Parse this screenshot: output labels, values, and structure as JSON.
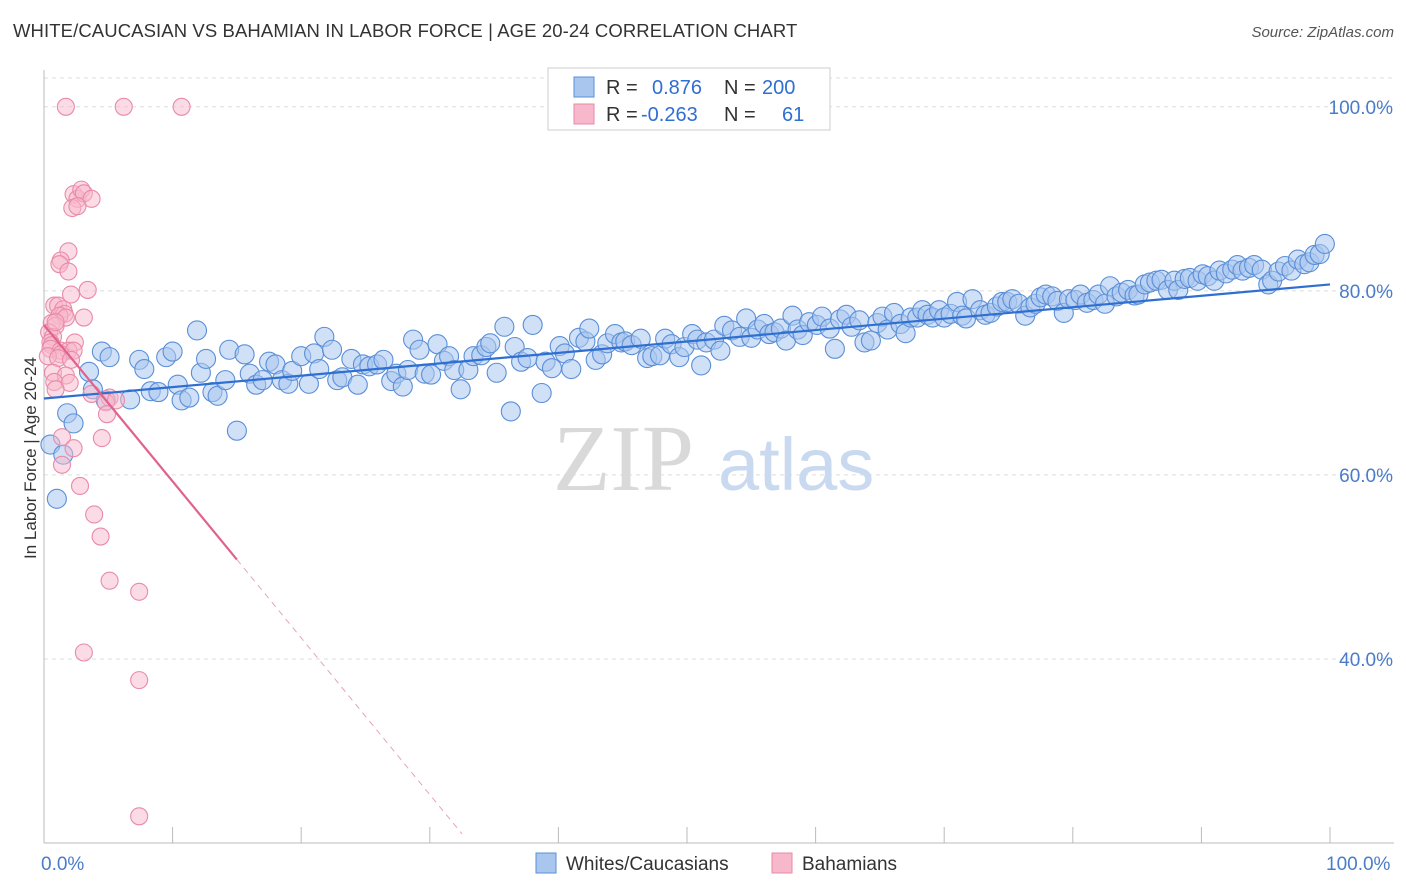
{
  "title": "WHITE/CAUCASIAN VS BAHAMIAN IN LABOR FORCE | AGE 20-24 CORRELATION CHART",
  "source": "Source: ZipAtlas.com",
  "watermark": {
    "zip": "ZIP",
    "atlas": "atlas"
  },
  "colors": {
    "white_fill": "#a9c6ee",
    "white_stroke": "#5a8fd8",
    "white_line": "#2f6fd1",
    "bah_fill": "#f7b8cc",
    "bah_stroke": "#e98aa9",
    "bah_line": "#e0628f",
    "axis_text": "#4a7cc9",
    "grid": "#dddddd"
  },
  "legend": {
    "row1": {
      "r_label": "R =",
      "r_value": "0.876",
      "n_label": "N =",
      "n_value": "200"
    },
    "row2": {
      "r_label": "R =",
      "r_value": "-0.263",
      "n_label": "N =",
      "n_value": "61"
    }
  },
  "bottom_legend": {
    "white": "Whites/Caucasians",
    "bahamian": "Bahamians"
  },
  "chart_data": {
    "type": "scatter",
    "title": "WHITE/CAUCASIAN VS BAHAMIAN IN LABOR FORCE | AGE 20-24 CORRELATION CHART",
    "xlabel": "",
    "ylabel": "In Labor Force | Age 20-24",
    "xlim": [
      0,
      100
    ],
    "ylim": [
      20,
      104
    ],
    "x_tick_labels": [
      "0.0%",
      "100.0%"
    ],
    "y_ticks": [
      40,
      60,
      80,
      100
    ],
    "y_tick_labels": [
      "40.0%",
      "60.0%",
      "80.0%",
      "100.0%"
    ],
    "grid": true,
    "legend_placement": "top-center",
    "series": [
      {
        "name": "Whites/Caucasians",
        "R": 0.876,
        "N": 200,
        "trend": {
          "x": [
            0,
            100
          ],
          "y": [
            68.3,
            80.7
          ]
        },
        "points": [
          [
            0.5,
            63.3
          ],
          [
            1.0,
            57.4
          ],
          [
            1.5,
            62.2
          ],
          [
            1.8,
            66.7
          ],
          [
            2.3,
            65.6
          ],
          [
            3.5,
            71.2
          ],
          [
            3.8,
            69.3
          ],
          [
            4.5,
            73.4
          ],
          [
            4.8,
            68.1
          ],
          [
            5.1,
            72.8
          ],
          [
            6.7,
            68.2
          ],
          [
            7.4,
            72.5
          ],
          [
            7.8,
            71.5
          ],
          [
            8.3,
            69.1
          ],
          [
            8.9,
            69.0
          ],
          [
            9.5,
            72.8
          ],
          [
            10.0,
            73.4
          ],
          [
            10.4,
            69.8
          ],
          [
            10.7,
            68.1
          ],
          [
            11.3,
            68.4
          ],
          [
            11.9,
            75.7
          ],
          [
            12.2,
            71.1
          ],
          [
            12.6,
            72.6
          ],
          [
            13.1,
            69.0
          ],
          [
            13.5,
            68.6
          ],
          [
            14.1,
            70.3
          ],
          [
            14.4,
            73.6
          ],
          [
            15.0,
            64.8
          ],
          [
            15.6,
            73.1
          ],
          [
            16.0,
            71.0
          ],
          [
            16.5,
            69.8
          ],
          [
            17.0,
            70.3
          ],
          [
            17.5,
            72.3
          ],
          [
            18.0,
            72.0
          ],
          [
            18.5,
            70.3
          ],
          [
            19.0,
            69.9
          ],
          [
            19.3,
            71.3
          ],
          [
            20.0,
            72.9
          ],
          [
            20.6,
            69.9
          ],
          [
            21.0,
            73.2
          ],
          [
            21.4,
            71.5
          ],
          [
            21.8,
            75.0
          ],
          [
            22.4,
            73.6
          ],
          [
            22.8,
            70.3
          ],
          [
            23.2,
            70.6
          ],
          [
            23.9,
            72.6
          ],
          [
            24.4,
            69.8
          ],
          [
            24.8,
            72.0
          ],
          [
            25.3,
            71.8
          ],
          [
            25.9,
            72.0
          ],
          [
            26.4,
            72.5
          ],
          [
            27.0,
            70.2
          ],
          [
            27.4,
            71.0
          ],
          [
            27.9,
            69.6
          ],
          [
            28.3,
            71.4
          ],
          [
            28.7,
            74.7
          ],
          [
            29.2,
            73.6
          ],
          [
            29.6,
            71.0
          ],
          [
            30.1,
            70.9
          ],
          [
            30.6,
            74.2
          ],
          [
            31.1,
            72.4
          ],
          [
            31.5,
            72.9
          ],
          [
            31.9,
            71.4
          ],
          [
            32.4,
            69.3
          ],
          [
            33.0,
            71.4
          ],
          [
            33.4,
            72.9
          ],
          [
            34.0,
            73.0
          ],
          [
            34.4,
            73.9
          ],
          [
            34.7,
            74.3
          ],
          [
            35.2,
            71.1
          ],
          [
            35.8,
            76.1
          ],
          [
            36.3,
            66.9
          ],
          [
            36.6,
            73.9
          ],
          [
            37.1,
            72.3
          ],
          [
            37.6,
            72.7
          ],
          [
            38.0,
            76.3
          ],
          [
            38.7,
            68.9
          ],
          [
            39.0,
            72.3
          ],
          [
            39.5,
            71.6
          ],
          [
            40.1,
            74.0
          ],
          [
            40.5,
            73.2
          ],
          [
            41.0,
            71.5
          ],
          [
            41.6,
            74.9
          ],
          [
            42.1,
            74.5
          ],
          [
            42.4,
            75.9
          ],
          [
            42.9,
            72.5
          ],
          [
            43.4,
            73.1
          ],
          [
            43.8,
            74.3
          ],
          [
            44.4,
            75.3
          ],
          [
            44.9,
            74.4
          ],
          [
            45.2,
            74.5
          ],
          [
            45.7,
            74.1
          ],
          [
            46.4,
            74.8
          ],
          [
            46.9,
            72.7
          ],
          [
            47.3,
            72.9
          ],
          [
            47.9,
            73.0
          ],
          [
            48.3,
            74.8
          ],
          [
            48.8,
            74.2
          ],
          [
            49.4,
            72.8
          ],
          [
            49.8,
            73.9
          ],
          [
            50.4,
            75.3
          ],
          [
            50.8,
            74.7
          ],
          [
            51.1,
            71.9
          ],
          [
            51.5,
            74.4
          ],
          [
            52.1,
            74.7
          ],
          [
            52.6,
            73.5
          ],
          [
            52.9,
            76.2
          ],
          [
            53.5,
            75.7
          ],
          [
            54.1,
            75.0
          ],
          [
            54.6,
            77.0
          ],
          [
            55.0,
            74.9
          ],
          [
            55.5,
            75.8
          ],
          [
            56.0,
            76.4
          ],
          [
            56.4,
            75.3
          ],
          [
            56.8,
            75.5
          ],
          [
            57.3,
            75.9
          ],
          [
            57.7,
            74.6
          ],
          [
            58.2,
            77.3
          ],
          [
            58.6,
            75.8
          ],
          [
            59.0,
            75.2
          ],
          [
            59.5,
            76.6
          ],
          [
            60.1,
            76.3
          ],
          [
            60.5,
            77.2
          ],
          [
            61.1,
            75.9
          ],
          [
            61.5,
            73.7
          ],
          [
            61.9,
            76.9
          ],
          [
            62.4,
            77.4
          ],
          [
            62.8,
            76.1
          ],
          [
            63.4,
            76.8
          ],
          [
            63.8,
            74.4
          ],
          [
            64.3,
            74.6
          ],
          [
            64.8,
            76.5
          ],
          [
            65.2,
            77.2
          ],
          [
            65.6,
            75.8
          ],
          [
            66.1,
            77.6
          ],
          [
            66.6,
            76.4
          ],
          [
            67.0,
            75.4
          ],
          [
            67.4,
            77.1
          ],
          [
            67.9,
            77.1
          ],
          [
            68.3,
            77.9
          ],
          [
            68.7,
            77.4
          ],
          [
            69.1,
            77.1
          ],
          [
            69.6,
            77.9
          ],
          [
            70.0,
            77.1
          ],
          [
            70.5,
            77.5
          ],
          [
            71.0,
            78.8
          ],
          [
            71.4,
            77.3
          ],
          [
            71.7,
            77.0
          ],
          [
            72.2,
            79.1
          ],
          [
            72.8,
            77.9
          ],
          [
            73.2,
            77.4
          ],
          [
            73.6,
            77.6
          ],
          [
            74.1,
            78.3
          ],
          [
            74.5,
            78.8
          ],
          [
            74.9,
            78.8
          ],
          [
            75.3,
            79.1
          ],
          [
            75.8,
            78.6
          ],
          [
            76.3,
            77.3
          ],
          [
            76.7,
            78.2
          ],
          [
            77.1,
            78.6
          ],
          [
            77.5,
            79.3
          ],
          [
            77.9,
            79.6
          ],
          [
            78.4,
            79.4
          ],
          [
            78.8,
            78.9
          ],
          [
            79.3,
            77.6
          ],
          [
            79.7,
            79.1
          ],
          [
            80.2,
            79.0
          ],
          [
            80.6,
            79.6
          ],
          [
            81.1,
            78.7
          ],
          [
            81.6,
            79.0
          ],
          [
            82.0,
            79.6
          ],
          [
            82.5,
            78.6
          ],
          [
            82.9,
            80.5
          ],
          [
            83.4,
            79.4
          ],
          [
            83.8,
            79.8
          ],
          [
            84.3,
            80.1
          ],
          [
            84.8,
            79.5
          ],
          [
            85.1,
            79.6
          ],
          [
            85.6,
            80.7
          ],
          [
            86.0,
            80.9
          ],
          [
            86.5,
            81.1
          ],
          [
            86.9,
            81.2
          ],
          [
            87.4,
            80.1
          ],
          [
            87.9,
            81.1
          ],
          [
            88.2,
            80.1
          ],
          [
            88.7,
            81.3
          ],
          [
            89.1,
            81.4
          ],
          [
            89.7,
            81.1
          ],
          [
            90.1,
            81.8
          ],
          [
            90.5,
            81.6
          ],
          [
            91.0,
            81.1
          ],
          [
            91.4,
            82.2
          ],
          [
            91.9,
            81.9
          ],
          [
            92.4,
            82.3
          ],
          [
            92.8,
            82.8
          ],
          [
            93.2,
            82.2
          ],
          [
            93.7,
            82.5
          ],
          [
            94.1,
            82.8
          ],
          [
            94.7,
            82.3
          ],
          [
            95.2,
            80.7
          ],
          [
            95.5,
            81.1
          ],
          [
            96.0,
            82.1
          ],
          [
            96.5,
            82.7
          ],
          [
            97.0,
            82.2
          ],
          [
            97.5,
            83.4
          ],
          [
            98.0,
            82.9
          ],
          [
            98.4,
            83.1
          ],
          [
            98.8,
            83.9
          ],
          [
            99.2,
            84.0
          ],
          [
            99.6,
            85.1
          ]
        ]
      },
      {
        "name": "Bahamians",
        "R": -0.263,
        "N": 61,
        "trend": {
          "x": [
            0,
            15
          ],
          "y": [
            76.3,
            50.8
          ]
        },
        "trend_dashed": {
          "x": [
            15,
            32.5
          ],
          "y": [
            50.8,
            21
          ]
        },
        "points": [
          [
            1.7,
            100.0
          ],
          [
            6.2,
            100.0
          ],
          [
            10.7,
            100.0
          ],
          [
            2.3,
            90.5
          ],
          [
            2.6,
            90.0
          ],
          [
            2.9,
            91.0
          ],
          [
            3.1,
            90.6
          ],
          [
            3.7,
            90.0
          ],
          [
            2.2,
            89.0
          ],
          [
            2.6,
            89.2
          ],
          [
            1.9,
            84.3
          ],
          [
            1.3,
            83.3
          ],
          [
            1.2,
            82.9
          ],
          [
            1.9,
            82.1
          ],
          [
            3.4,
            80.1
          ],
          [
            2.1,
            79.6
          ],
          [
            0.8,
            78.4
          ],
          [
            1.1,
            78.4
          ],
          [
            1.5,
            78.0
          ],
          [
            1.6,
            77.5
          ],
          [
            3.1,
            77.1
          ],
          [
            1.2,
            77.3
          ],
          [
            1.7,
            77.1
          ],
          [
            0.6,
            76.5
          ],
          [
            0.9,
            76.2
          ],
          [
            0.4,
            75.5
          ],
          [
            0.7,
            75.0
          ],
          [
            0.5,
            74.4
          ],
          [
            0.6,
            74.1
          ],
          [
            2.4,
            74.4
          ],
          [
            0.5,
            73.7
          ],
          [
            1.3,
            73.5
          ],
          [
            1.9,
            73.5
          ],
          [
            2.3,
            73.5
          ],
          [
            1.3,
            73.1
          ],
          [
            0.3,
            72.9
          ],
          [
            1.1,
            72.7
          ],
          [
            2.1,
            72.5
          ],
          [
            0.7,
            71.1
          ],
          [
            1.7,
            70.8
          ],
          [
            0.8,
            70.1
          ],
          [
            2.0,
            70.0
          ],
          [
            0.9,
            69.3
          ],
          [
            3.7,
            68.8
          ],
          [
            5.1,
            68.4
          ],
          [
            4.8,
            67.9
          ],
          [
            5.6,
            68.1
          ],
          [
            4.9,
            66.6
          ],
          [
            1.4,
            64.1
          ],
          [
            4.5,
            64.0
          ],
          [
            2.3,
            62.9
          ],
          [
            1.4,
            61.1
          ],
          [
            2.8,
            58.8
          ],
          [
            3.9,
            55.7
          ],
          [
            4.4,
            53.3
          ],
          [
            5.1,
            48.5
          ],
          [
            7.4,
            47.3
          ],
          [
            3.1,
            40.7
          ],
          [
            7.4,
            37.7
          ],
          [
            7.4,
            22.9
          ],
          [
            0.9,
            76.6
          ]
        ]
      }
    ]
  }
}
